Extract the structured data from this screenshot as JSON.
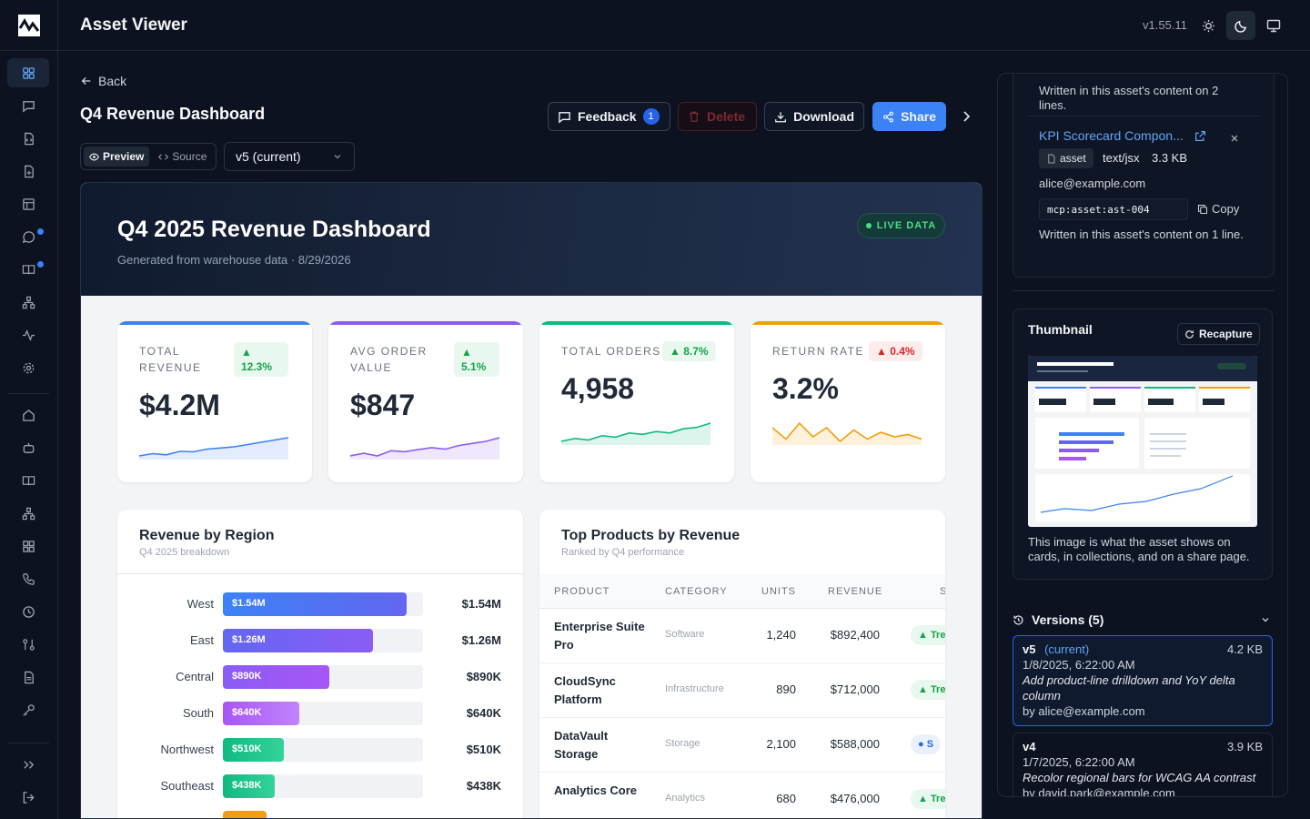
{
  "app": {
    "title": "Asset Viewer",
    "version": "v1.55.11"
  },
  "page": {
    "back": "Back",
    "title": "Q4 Revenue Dashboard"
  },
  "actions": {
    "feedback": "Feedback",
    "feedback_count": "1",
    "delete": "Delete",
    "download": "Download",
    "share": "Share"
  },
  "view": {
    "preview": "Preview",
    "source": "Source",
    "version": "v5 (current)"
  },
  "dashboard": {
    "title": "Q4 2025 Revenue Dashboard",
    "subtitle": "Generated from warehouse data · 8/29/2026",
    "live": "LIVE DATA",
    "kpis": [
      {
        "label": "TOTAL REVENUE",
        "delta": "12.3%",
        "value": "$4.2M",
        "color": "#3b82f6",
        "trend": [
          5,
          6,
          5.5,
          7,
          6.8,
          8,
          8.5,
          9,
          10,
          11,
          12,
          13
        ]
      },
      {
        "label": "AVG ORDER VALUE",
        "delta": "5.1%",
        "value": "$847",
        "color": "#8b5cf6",
        "trend": [
          6,
          6.5,
          6,
          7,
          6.8,
          7.2,
          7.6,
          7.3,
          8,
          8.4,
          8.8,
          9.5
        ]
      },
      {
        "label": "TOTAL ORDERS",
        "delta": "8.7%",
        "value": "4,958",
        "color": "#10b981",
        "trend": [
          4,
          5,
          4.5,
          6,
          5.5,
          7,
          6.5,
          7.5,
          7,
          8.5,
          9,
          10.5
        ]
      },
      {
        "label": "RETURN RATE",
        "delta": "0.4%",
        "value": "3.2%",
        "color": "#f59e0b",
        "trend": [
          7,
          6.5,
          7.2,
          6.6,
          7,
          6.4,
          6.9,
          6.5,
          6.8,
          6.6,
          6.7,
          6.5
        ]
      }
    ],
    "region": {
      "title": "Revenue by Region",
      "subtitle": "Q4 2025 breakdown",
      "rows": [
        {
          "name": "West",
          "label": "$1.54M",
          "value": 1.54
        },
        {
          "name": "East",
          "label": "$1.26M",
          "value": 1.26
        },
        {
          "name": "Central",
          "label": "$890K",
          "value": 0.89
        },
        {
          "name": "South",
          "label": "$640K",
          "value": 0.64
        },
        {
          "name": "Northwest",
          "label": "$510K",
          "value": 0.51
        },
        {
          "name": "Southeast",
          "label": "$438K",
          "value": 0.438
        }
      ]
    },
    "products": {
      "title": "Top Products by Revenue",
      "subtitle": "Ranked by Q4 performance",
      "columns": [
        "PRODUCT",
        "CATEGORY",
        "UNITS",
        "REVENUE",
        "S"
      ],
      "rows": [
        {
          "name": "Enterprise Suite Pro",
          "category": "Software",
          "units": "1,240",
          "revenue": "$892,400",
          "status": "▲ Tre"
        },
        {
          "name": "CloudSync Platform",
          "category": "Infrastructure",
          "units": "890",
          "revenue": "$712,000",
          "status": "▲ Tre"
        },
        {
          "name": "DataVault Storage",
          "category": "Storage",
          "units": "2,100",
          "revenue": "$588,000",
          "status": "● S"
        },
        {
          "name": "Analytics Core",
          "category": "Analytics",
          "units": "680",
          "revenue": "$476,000",
          "status": "▲ Tre"
        }
      ]
    }
  },
  "side": {
    "ref1_written": "Written in this asset's content on 2 lines.",
    "ref2": {
      "title": "KPI Scorecard Compon...",
      "type": "asset",
      "mime": "text/jsx",
      "size": "3.3 KB",
      "author": "alice@example.com",
      "uri": "mcp:asset:ast-004",
      "copy": "Copy",
      "written": "Written in this asset's content on 1 line."
    },
    "thumbnail": {
      "title": "Thumbnail",
      "recapture": "Recapture",
      "desc": "This image is what the asset shows on cards, in collections, and on a share page."
    },
    "versions": {
      "title": "Versions (5)",
      "items": [
        {
          "v": "v5",
          "tag": "(current)",
          "size": "4.2 KB",
          "date": "1/8/2025, 6:22:00 AM",
          "msg": "Add product-line drilldown and YoY delta column",
          "by": "by alice@example.com"
        },
        {
          "v": "v4",
          "tag": "",
          "size": "3.9 KB",
          "date": "1/7/2025, 6:22:00 AM",
          "msg": "Recolor regional bars for WCAG AA contrast",
          "by": "by david.park@example.com"
        }
      ]
    }
  }
}
